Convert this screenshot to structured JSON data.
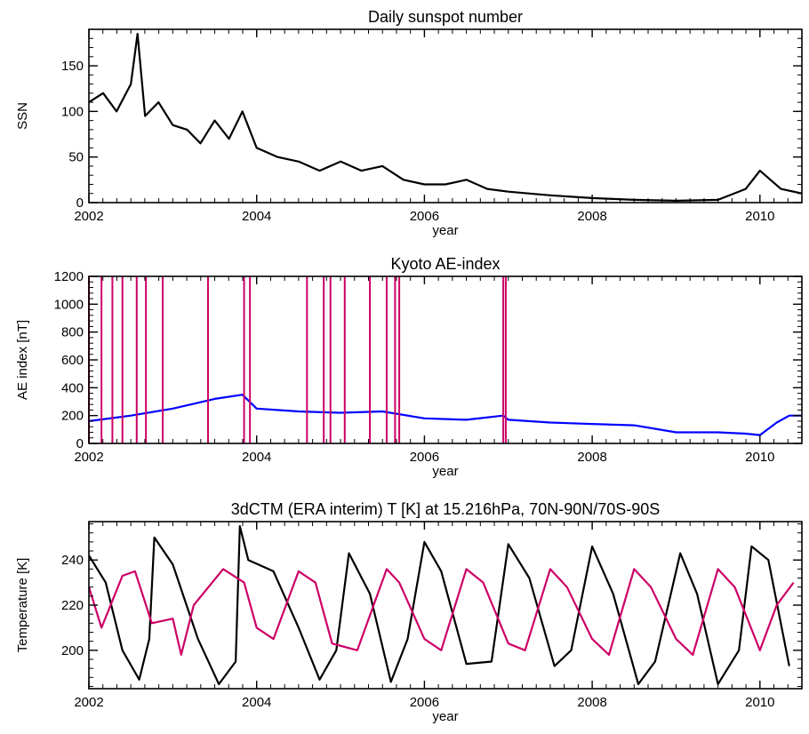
{
  "chart_data": [
    {
      "type": "line",
      "title": "Daily sunspot number",
      "xlabel": "year",
      "ylabel": "SSN",
      "xlim": [
        2002,
        2010.5
      ],
      "ylim": [
        0,
        190
      ],
      "xticks": [
        2002,
        2004,
        2006,
        2008,
        2010
      ],
      "xtick_labels": [
        "2002",
        "2004",
        "2006",
        "2008",
        "2010"
      ],
      "yticks": [
        0,
        50,
        100,
        150
      ],
      "ytick_labels": [
        "0",
        "50",
        "100",
        "150"
      ],
      "series": [
        {
          "color": "#000000",
          "x": [
            2002.0,
            2002.17,
            2002.33,
            2002.5,
            2002.58,
            2002.67,
            2002.83,
            2003.0,
            2003.17,
            2003.33,
            2003.5,
            2003.67,
            2003.83,
            2004.0,
            2004.25,
            2004.5,
            2004.75,
            2005.0,
            2005.25,
            2005.5,
            2005.75,
            2006.0,
            2006.25,
            2006.5,
            2006.75,
            2007.0,
            2007.5,
            2008.0,
            2008.5,
            2009.0,
            2009.5,
            2009.83,
            2010.0,
            2010.25,
            2010.5
          ],
          "values": [
            110,
            120,
            100,
            130,
            185,
            95,
            110,
            85,
            80,
            65,
            90,
            70,
            100,
            60,
            50,
            45,
            35,
            45,
            35,
            40,
            25,
            20,
            20,
            25,
            15,
            12,
            8,
            5,
            3,
            2,
            3,
            15,
            35,
            15,
            10
          ]
        }
      ]
    },
    {
      "type": "line",
      "title": "Kyoto AE-index",
      "xlabel": "year",
      "ylabel": "AE index [nT]",
      "xlim": [
        2002,
        2010.5
      ],
      "ylim": [
        0,
        1200
      ],
      "xticks": [
        2002,
        2004,
        2006,
        2008,
        2010
      ],
      "xtick_labels": [
        "2002",
        "2004",
        "2006",
        "2008",
        "2010"
      ],
      "yticks": [
        0,
        200,
        400,
        600,
        800,
        1000,
        1200
      ],
      "ytick_labels": [
        "0",
        "200",
        "400",
        "600",
        "800",
        "1000",
        "1200"
      ],
      "series": [
        {
          "color": "#0000ff",
          "x": [
            2002.0,
            2002.5,
            2003.0,
            2003.5,
            2003.83,
            2004.0,
            2004.5,
            2005.0,
            2005.5,
            2006.0,
            2006.5,
            2006.94,
            2007.0,
            2007.5,
            2008.0,
            2008.5,
            2009.0,
            2009.5,
            2009.83,
            2010.0,
            2010.2,
            2010.35,
            2010.5
          ],
          "values": [
            160,
            200,
            250,
            320,
            350,
            250,
            230,
            220,
            230,
            180,
            170,
            200,
            170,
            150,
            140,
            130,
            80,
            80,
            70,
            60,
            150,
            200,
            200
          ]
        }
      ],
      "events_above_max": [
        2002.0,
        2002.15,
        2002.28,
        2002.4,
        2002.57,
        2002.68,
        2002.88,
        2003.42,
        2003.85,
        2003.92,
        2004.6,
        2004.8,
        2004.88,
        2005.05,
        2005.35,
        2005.55,
        2005.65,
        2005.7,
        2006.94,
        2006.97
      ],
      "events_color": "#cc0066"
    },
    {
      "type": "line",
      "title": "3dCTM (ERA interim) T [K] at  15.216hPa, 70N-90N/70S-90S",
      "xlabel": "year",
      "ylabel": "Temperature [K]",
      "xlim": [
        2002,
        2010.5
      ],
      "ylim": [
        183,
        257
      ],
      "xticks": [
        2002,
        2004,
        2006,
        2008,
        2010
      ],
      "xtick_labels": [
        "2002",
        "2004",
        "2006",
        "2008",
        "2010"
      ],
      "yticks": [
        200,
        220,
        240
      ],
      "ytick_labels": [
        "200",
        "220",
        "240"
      ],
      "series": [
        {
          "color": "#000000",
          "x": [
            2002.0,
            2002.2,
            2002.4,
            2002.6,
            2002.72,
            2002.78,
            2003.0,
            2003.3,
            2003.55,
            2003.75,
            2003.8,
            2003.9,
            2004.2,
            2004.5,
            2004.75,
            2004.95,
            2005.1,
            2005.35,
            2005.6,
            2005.8,
            2006.0,
            2006.2,
            2006.5,
            2006.8,
            2007.0,
            2007.25,
            2007.55,
            2007.75,
            2008.0,
            2008.25,
            2008.55,
            2008.75,
            2009.05,
            2009.25,
            2009.5,
            2009.75,
            2009.9,
            2010.1,
            2010.35
          ],
          "values": [
            242,
            230,
            200,
            187,
            205,
            250,
            238,
            205,
            185,
            195,
            255,
            240,
            235,
            210,
            187,
            200,
            243,
            225,
            186,
            205,
            248,
            235,
            194,
            195,
            247,
            232,
            193,
            200,
            246,
            225,
            185,
            195,
            243,
            225,
            185,
            200,
            246,
            240,
            193
          ]
        },
        {
          "color": "#cc0066",
          "x": [
            2002.0,
            2002.15,
            2002.4,
            2002.55,
            2002.75,
            2003.0,
            2003.1,
            2003.25,
            2003.6,
            2003.85,
            2004.0,
            2004.2,
            2004.5,
            2004.7,
            2004.9,
            2005.2,
            2005.55,
            2005.7,
            2006.0,
            2006.2,
            2006.5,
            2006.7,
            2007.0,
            2007.2,
            2007.5,
            2007.7,
            2008.0,
            2008.2,
            2008.5,
            2008.7,
            2009.0,
            2009.2,
            2009.5,
            2009.7,
            2010.0,
            2010.2,
            2010.4
          ],
          "values": [
            228,
            210,
            233,
            235,
            212,
            214,
            198,
            220,
            236,
            230,
            210,
            205,
            235,
            230,
            203,
            200,
            236,
            230,
            205,
            200,
            236,
            230,
            203,
            200,
            236,
            228,
            205,
            198,
            236,
            228,
            205,
            198,
            236,
            228,
            200,
            220,
            230
          ]
        }
      ]
    }
  ]
}
